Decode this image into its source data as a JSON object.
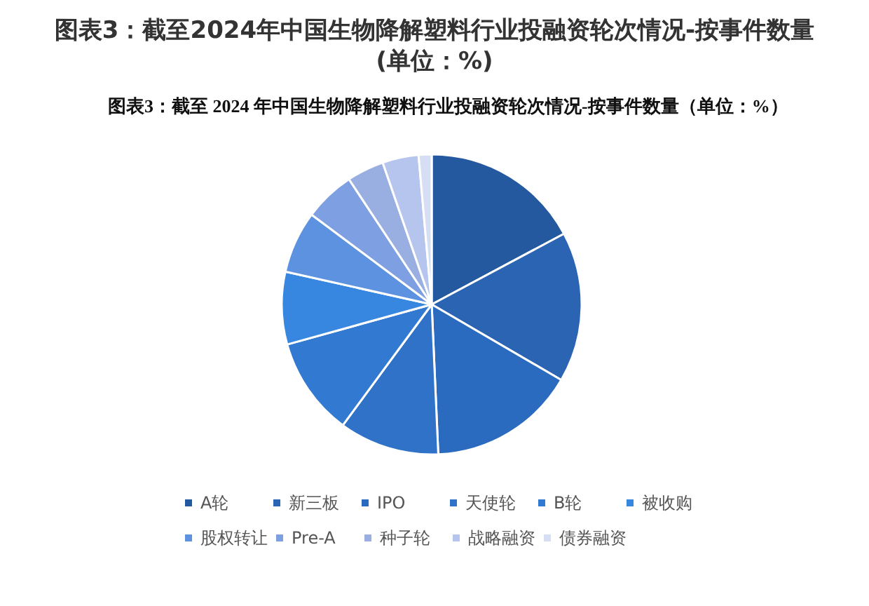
{
  "chart_data": {
    "type": "pie",
    "title": "图表3：截至2024年中国生物降解塑料行业投融资轮次情况-按事件数量(单位：%)",
    "subtitle": "图表3：截至 2024 年中国生物降解塑料行业投融资轮次情况-按事件数量（单位：%）",
    "categories": [
      "A轮",
      "新三板",
      "IPO",
      "天使轮",
      "B轮",
      "被收购",
      "股权转让",
      "Pre-A",
      "种子轮",
      "战略融资",
      "债券融资"
    ],
    "values": [
      17.2,
      16.2,
      15.9,
      10.8,
      10.6,
      7.8,
      6.7,
      5.5,
      4.0,
      3.9,
      1.4
    ],
    "colors": [
      "#24589f",
      "#2a64b3",
      "#2b6bbf",
      "#2f72c8",
      "#3279d1",
      "#3786df",
      "#5d92e0",
      "#7ea0e3",
      "#99afe1",
      "#b6c5ee",
      "#d6def4"
    ],
    "legend": "bottom"
  }
}
